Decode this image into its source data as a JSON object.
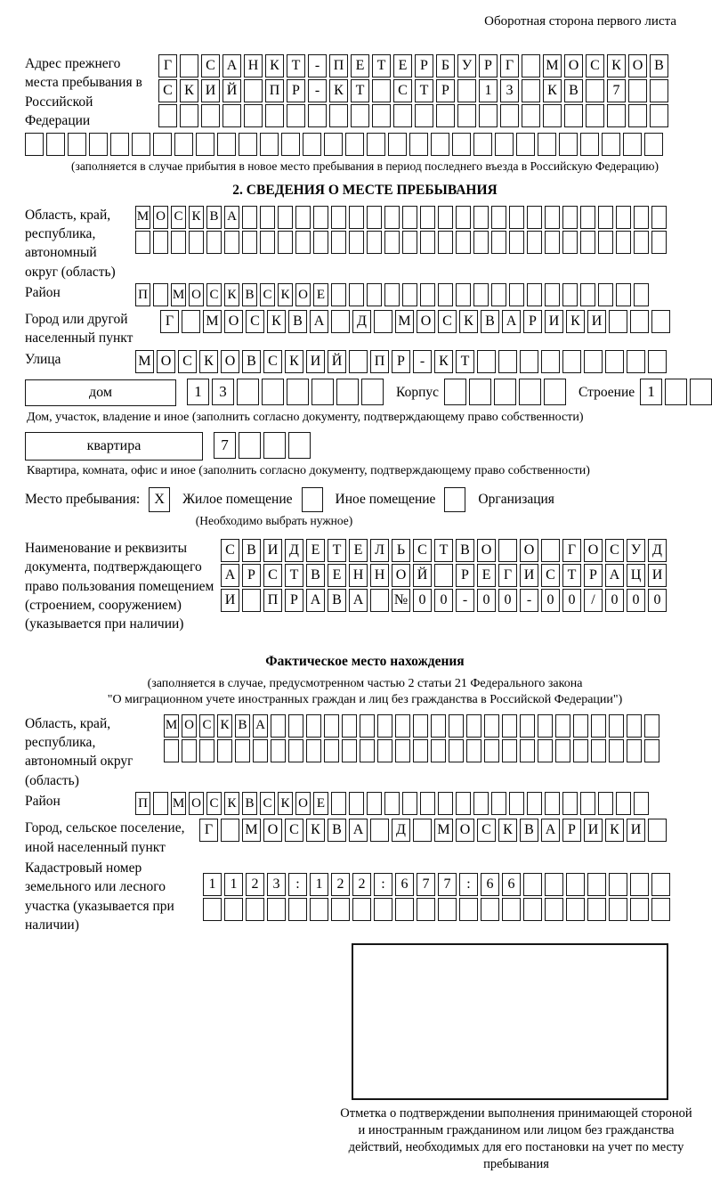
{
  "header": {
    "right": "Оборотная сторона первого листа"
  },
  "prev_address": {
    "label": "Адрес прежнего места пребывания в Российской Федерации",
    "rows": [
      {
        "text": "Г САНКТ-ПЕТЕРБУРГ МОСКОВ",
        "len": 24
      },
      {
        "text": "СКИЙ ПР-КТ СТР 13 КВ 7",
        "len": 24
      },
      {
        "text": "",
        "len": 24
      },
      {
        "text": "",
        "len": 30
      }
    ],
    "note": "(заполняется в случае прибытия в новое место пребывания в период последнего въезда в Российскую Федерацию)"
  },
  "section2": {
    "title": "2. СВЕДЕНИЯ О МЕСТЕ ПРЕБЫВАНИЯ",
    "region": {
      "label": "Область, край, республика, автономный округ (область)",
      "rows": [
        {
          "text": "МОСКВА",
          "len": 30
        },
        {
          "text": "",
          "len": 30
        }
      ]
    },
    "district": {
      "label": "Район",
      "row": {
        "text": "П МОСКВСКОЕ",
        "len": 29
      }
    },
    "city": {
      "label": "Город или другой населенный пункт",
      "row": {
        "text": "Г МОСКВА Д МОСКВАРИКИ",
        "len": 24
      }
    },
    "street": {
      "label": "Улица",
      "row": {
        "text": "МОСКОВСКИЙ ПР-КТ",
        "len": 25
      }
    },
    "house": {
      "box_label": "дом",
      "number": {
        "text": "13",
        "len": 8
      },
      "korpus_label": "Корпус",
      "korpus": {
        "text": "",
        "len": 5
      },
      "stroenie_label": "Строение",
      "stroenie": {
        "text": "1",
        "len": 4
      }
    },
    "house_note": "Дом, участок, владение и иное (заполнить согласно документу, подтверждающему право собственности)",
    "apartment": {
      "box_label": "квартира",
      "number": {
        "text": "7",
        "len": 4
      }
    },
    "apartment_note": "Квартира, комната, офис и иное (заполнить согласно документу, подтверждающему право собственности)",
    "stay": {
      "label": "Место пребывания:",
      "options": [
        {
          "mark": "X",
          "label": "Жилое помещение"
        },
        {
          "mark": "",
          "label": "Иное помещение"
        },
        {
          "mark": "",
          "label": "Организация"
        }
      ],
      "note": "(Необходимо выбрать нужное)"
    },
    "doc": {
      "label": "Наименование и реквизиты документа, подтверждающего право пользования помещением (строением, сооружением) (указывается при наличии)",
      "rows": [
        {
          "text": "СВИДЕТЕЛЬСТВО О ГОСУД",
          "len": 21
        },
        {
          "text": "АРСТВЕННОЙ РЕГИСТРАЦИ",
          "len": 21
        },
        {
          "text": "И ПРАВА №00-00-00/000",
          "len": 21
        }
      ]
    }
  },
  "actual": {
    "title": "Фактическое место нахождения",
    "note1": "(заполняется в случае, предусмотренном частью 2 статьи 21 Федерального закона",
    "note2": "\"О миграционном учете иностранных граждан и лиц без гражданства в Российской Федерации\")",
    "region": {
      "label": "Область, край, республика, автономный округ (область)",
      "rows": [
        {
          "text": "МОСКВА",
          "len": 28
        },
        {
          "text": "",
          "len": 28
        }
      ]
    },
    "district": {
      "label": "Район",
      "row": {
        "text": "П МОСКВСКОЕ",
        "len": 29
      }
    },
    "city": {
      "label": "Город, сельское поселение, иной населенный пункт",
      "row": {
        "text": "Г МОСКВА Д МОСКВАРИКИ",
        "len": 22
      }
    },
    "cadastre": {
      "label": "Кадастровый номер земельного или лесного участка (указывается при наличии)",
      "rows": [
        {
          "text": "1123:122:677:66",
          "len": 22
        },
        {
          "text": "",
          "len": 22
        }
      ]
    },
    "stamp_note": "Отметка о подтверждении выполнения принимающей стороной и иностранным гражданином или лицом без гражданства действий, необходимых для его постановки на учет по месту пребывания"
  }
}
